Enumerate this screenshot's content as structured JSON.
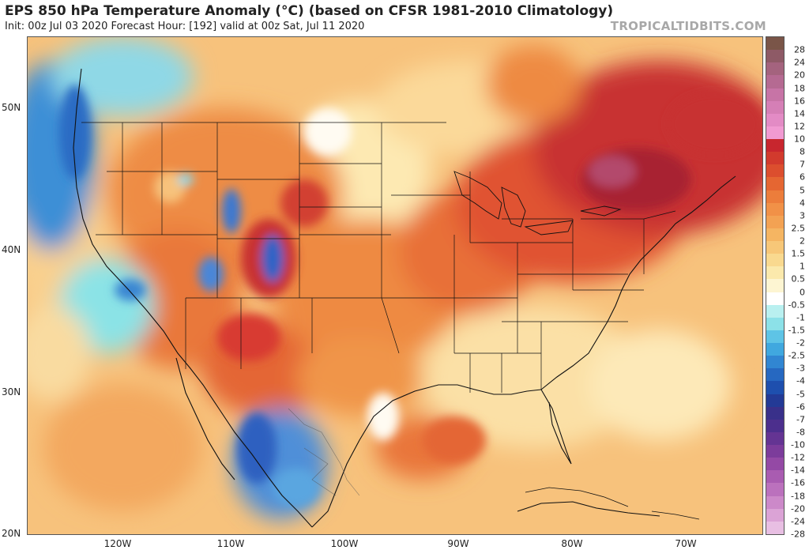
{
  "title": "EPS 850 hPa Temperature Anomaly (°C) (based on CFSR 1981-2010 Climatology)",
  "subtitle": "Init: 00z Jul 03 2020   Forecast Hour: [192]   valid at 00z Sat, Jul 11 2020",
  "brand": "TROPICALTIDBITS.COM",
  "axes": {
    "lat_labels": [
      "50N",
      "40N",
      "30N",
      "20N"
    ],
    "lon_labels": [
      "120W",
      "110W",
      "100W",
      "90W",
      "80W",
      "70W"
    ]
  },
  "colorbar": {
    "labels": [
      "28",
      "24",
      "20",
      "18",
      "16",
      "14",
      "12",
      "10",
      "8",
      "7",
      "6",
      "5",
      "4",
      "3",
      "2.5",
      "2",
      "1.5",
      "1",
      "0.5",
      "0",
      "-0.5",
      "-1",
      "-1.5",
      "-2",
      "-2.5",
      "-3",
      "-4",
      "-5",
      "-6",
      "-7",
      "-8",
      "-10",
      "-12",
      "-14",
      "-16",
      "-18",
      "-20",
      "-24",
      "-28"
    ],
    "colors": [
      "#7a5548",
      "#8e5a66",
      "#a4637e",
      "#b56a92",
      "#c774a6",
      "#d57fb6",
      "#e38bc5",
      "#f19ad2",
      "#c8262e",
      "#d23a2d",
      "#dc4e2e",
      "#e56632",
      "#ec7d3b",
      "#f19147",
      "#f3a253",
      "#f5b562",
      "#f7c778",
      "#f9d98f",
      "#fbe9ac",
      "#fdf5d2",
      "#ffffff",
      "#b9f0f0",
      "#8ce1e8",
      "#5ec4e6",
      "#40a8df",
      "#3186d2",
      "#2668c1",
      "#1e4fae",
      "#233a96",
      "#39308a",
      "#4c2f8d",
      "#643493",
      "#7c3c9b",
      "#9449a5",
      "#a95cb1",
      "#bb71bd",
      "#cc89c9",
      "#dba3d6",
      "#e8bfe3"
    ]
  },
  "colors": {
    "ocean_base": "#f5bf79",
    "land_base": "#f1a462",
    "hot_core": "#b81f2f",
    "cold_core": "#2852b8"
  }
}
